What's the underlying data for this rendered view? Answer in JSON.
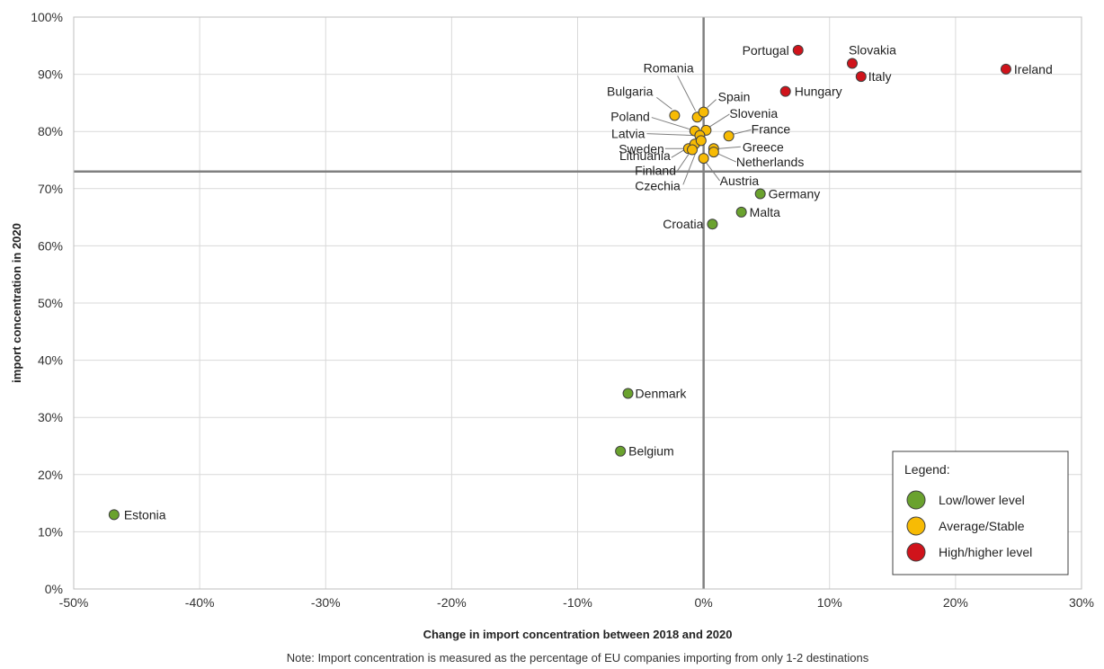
{
  "chart_data": {
    "type": "scatter",
    "xlabel": "Change in import concentration between 2018 and 2020",
    "ylabel": "import concentration in 2020",
    "note": "Note: Import concentration is measured as the percentage of EU companies importing from only 1-2 destinations",
    "xlim": [
      -50,
      30
    ],
    "ylim": [
      0,
      100
    ],
    "x_ticks": [
      -50,
      -40,
      -30,
      -20,
      -10,
      0,
      10,
      20,
      30
    ],
    "y_ticks": [
      0,
      10,
      20,
      30,
      40,
      50,
      60,
      70,
      80,
      90,
      100
    ],
    "x_tick_labels": [
      "-50%",
      "-40%",
      "-30%",
      "-20%",
      "-10%",
      "0%",
      "10%",
      "20%",
      "30%"
    ],
    "y_tick_labels": [
      "0%",
      "10%",
      "20%",
      "30%",
      "40%",
      "50%",
      "60%",
      "70%",
      "80%",
      "90%",
      "100%"
    ],
    "grid": true,
    "reference_lines": {
      "x": 0,
      "y": 73
    },
    "legend": {
      "title": "Legend:",
      "position": "bottom-right",
      "items": [
        {
          "label": "Low/lower level",
          "color": "#6aa22e"
        },
        {
          "label": "Average/Stable",
          "color": "#f7bb04"
        },
        {
          "label": "High/higher level",
          "color": "#d0131b"
        }
      ]
    },
    "series": [
      {
        "name": "Low/lower level",
        "color": "#6aa22e",
        "points": [
          {
            "label": "Estonia",
            "x": -46.8,
            "y": 13
          },
          {
            "label": "Belgium",
            "x": -6.6,
            "y": 24.1
          },
          {
            "label": "Denmark",
            "x": -6.0,
            "y": 34.2
          },
          {
            "label": "Croatia",
            "x": 0.7,
            "y": 63.8
          },
          {
            "label": "Malta",
            "x": 3.0,
            "y": 65.9
          },
          {
            "label": "Germany",
            "x": 4.5,
            "y": 69.1
          }
        ]
      },
      {
        "name": "Average/Stable",
        "color": "#f7bb04",
        "points": [
          {
            "label": "Bulgaria",
            "x": -2.3,
            "y": 82.8
          },
          {
            "label": "Romania",
            "x": -0.5,
            "y": 82.5
          },
          {
            "label": "Spain",
            "x": 0.0,
            "y": 83.4
          },
          {
            "label": "Slovenia",
            "x": 0.2,
            "y": 80.2
          },
          {
            "label": "Poland",
            "x": -0.7,
            "y": 80.1
          },
          {
            "label": "Latvia",
            "x": -0.3,
            "y": 79.3
          },
          {
            "label": "France",
            "x": 2.0,
            "y": 79.2
          },
          {
            "label": "Sweden",
            "x": -1.2,
            "y": 77.0
          },
          {
            "label": "Lithuania",
            "x": -0.7,
            "y": 77.8
          },
          {
            "label": "Greece",
            "x": 0.8,
            "y": 77.0
          },
          {
            "label": "Netherlands",
            "x": 0.8,
            "y": 76.4
          },
          {
            "label": "Finland",
            "x": -0.9,
            "y": 76.8
          },
          {
            "label": "Austria",
            "x": 0.0,
            "y": 75.3
          },
          {
            "label": "Czechia",
            "x": -0.2,
            "y": 78.4
          }
        ]
      },
      {
        "name": "High/higher level",
        "color": "#d0131b",
        "points": [
          {
            "label": "Portugal",
            "x": 7.5,
            "y": 94.2
          },
          {
            "label": "Slovakia",
            "x": 11.8,
            "y": 91.9
          },
          {
            "label": "Italy",
            "x": 12.5,
            "y": 89.6
          },
          {
            "label": "Ireland",
            "x": 24.0,
            "y": 90.9
          },
          {
            "label": "Hungary",
            "x": 6.5,
            "y": 87.0
          }
        ]
      }
    ]
  }
}
